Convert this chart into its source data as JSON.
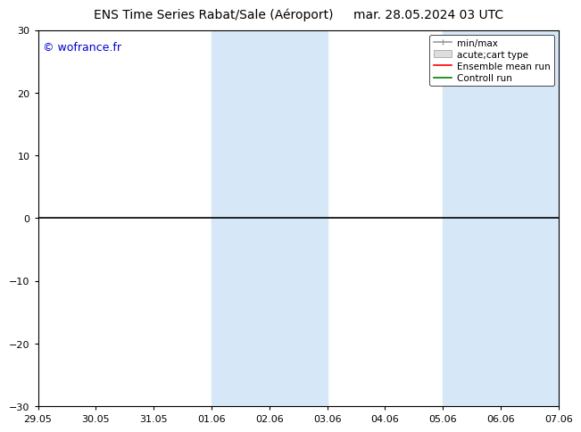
{
  "title_left": "ENS Time Series Rabat/Sale (Aéroport)",
  "title_right": "mar. 28.05.2024 03 UTC",
  "watermark": "© wofrance.fr",
  "ylim": [
    -30,
    30
  ],
  "yticks": [
    -30,
    -20,
    -10,
    0,
    10,
    20,
    30
  ],
  "x_labels": [
    "29.05",
    "30.05",
    "31.05",
    "01.06",
    "02.06",
    "03.06",
    "04.06",
    "05.06",
    "06.06",
    "07.06"
  ],
  "shaded_regions": [
    {
      "xstart": 3.0,
      "xend": 5.0,
      "color": "#d6e8f7"
    },
    {
      "xstart": 7.0,
      "xend": 9.0,
      "color": "#d6e8f7"
    }
  ],
  "zero_line_color": "#000000",
  "background_color": "#ffffff",
  "plot_bg_color": "#ffffff",
  "legend_items": [
    {
      "label": "min/max",
      "color": "#aaaaaa",
      "style": "errbar"
    },
    {
      "label": "acute;cart type",
      "color": "#cccccc",
      "style": "rect"
    },
    {
      "label": "Ensemble mean run",
      "color": "#ff0000",
      "style": "line"
    },
    {
      "label": "Controll run",
      "color": "#008000",
      "style": "line"
    }
  ],
  "title_fontsize": 10,
  "watermark_color": "#0000cc",
  "watermark_fontsize": 9,
  "tick_fontsize": 8,
  "legend_fontsize": 7.5,
  "fig_width": 6.34,
  "fig_height": 4.9,
  "dpi": 100
}
